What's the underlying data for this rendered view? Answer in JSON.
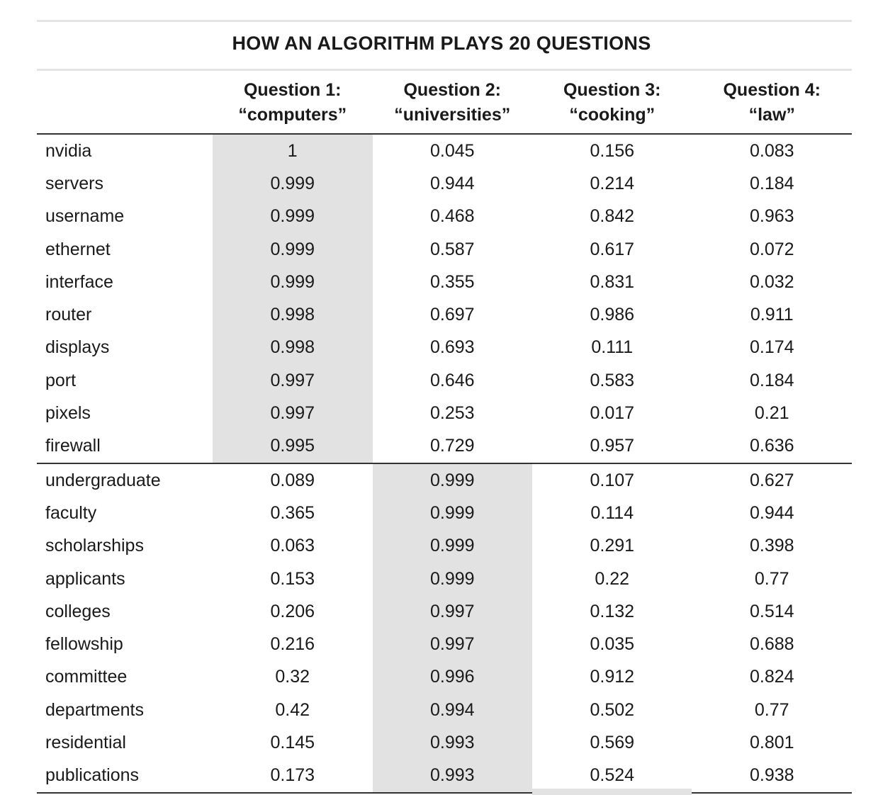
{
  "title": "HOW AN ALGORITHM PLAYS 20 QUESTIONS",
  "columns": [
    {
      "line1": "Question 1:",
      "line2": "“computers”"
    },
    {
      "line1": "Question 2:",
      "line2": "“universities”"
    },
    {
      "line1": "Question 3:",
      "line2": "“cooking”"
    },
    {
      "line1": "Question 4:",
      "line2": "“law”"
    }
  ],
  "groups": [
    {
      "highlight_column": 0,
      "rows": [
        {
          "word": "nvidia",
          "values": [
            "1",
            "0.045",
            "0.156",
            "0.083"
          ]
        },
        {
          "word": "servers",
          "values": [
            "0.999",
            "0.944",
            "0.214",
            "0.184"
          ]
        },
        {
          "word": "username",
          "values": [
            "0.999",
            "0.468",
            "0.842",
            "0.963"
          ]
        },
        {
          "word": "ethernet",
          "values": [
            "0.999",
            "0.587",
            "0.617",
            "0.072"
          ]
        },
        {
          "word": "interface",
          "values": [
            "0.999",
            "0.355",
            "0.831",
            "0.032"
          ]
        },
        {
          "word": "router",
          "values": [
            "0.998",
            "0.697",
            "0.986",
            "0.911"
          ]
        },
        {
          "word": "displays",
          "values": [
            "0.998",
            "0.693",
            "0.111",
            "0.174"
          ]
        },
        {
          "word": "port",
          "values": [
            "0.997",
            "0.646",
            "0.583",
            "0.184"
          ]
        },
        {
          "word": "pixels",
          "values": [
            "0.997",
            "0.253",
            "0.017",
            "0.21"
          ]
        },
        {
          "word": "firewall",
          "values": [
            "0.995",
            "0.729",
            "0.957",
            "0.636"
          ]
        }
      ]
    },
    {
      "highlight_column": 1,
      "rows": [
        {
          "word": "undergraduate",
          "values": [
            "0.089",
            "0.999",
            "0.107",
            "0.627"
          ]
        },
        {
          "word": "faculty",
          "values": [
            "0.365",
            "0.999",
            "0.114",
            "0.944"
          ]
        },
        {
          "word": "scholarships",
          "values": [
            "0.063",
            "0.999",
            "0.291",
            "0.398"
          ]
        },
        {
          "word": "applicants",
          "values": [
            "0.153",
            "0.999",
            "0.22",
            "0.77"
          ]
        },
        {
          "word": "colleges",
          "values": [
            "0.206",
            "0.997",
            "0.132",
            "0.514"
          ]
        },
        {
          "word": "fellowship",
          "values": [
            "0.216",
            "0.997",
            "0.035",
            "0.688"
          ]
        },
        {
          "word": "committee",
          "values": [
            "0.32",
            "0.996",
            "0.912",
            "0.824"
          ]
        },
        {
          "word": "departments",
          "values": [
            "0.42",
            "0.994",
            "0.502",
            "0.77"
          ]
        },
        {
          "word": "residential",
          "values": [
            "0.145",
            "0.993",
            "0.569",
            "0.801"
          ]
        },
        {
          "word": "publications",
          "values": [
            "0.173",
            "0.993",
            "0.524",
            "0.938"
          ]
        }
      ]
    }
  ],
  "colors": {
    "highlight": "#e2e2e2",
    "rule": "#333333",
    "light_rule": "#e4e4e4"
  }
}
